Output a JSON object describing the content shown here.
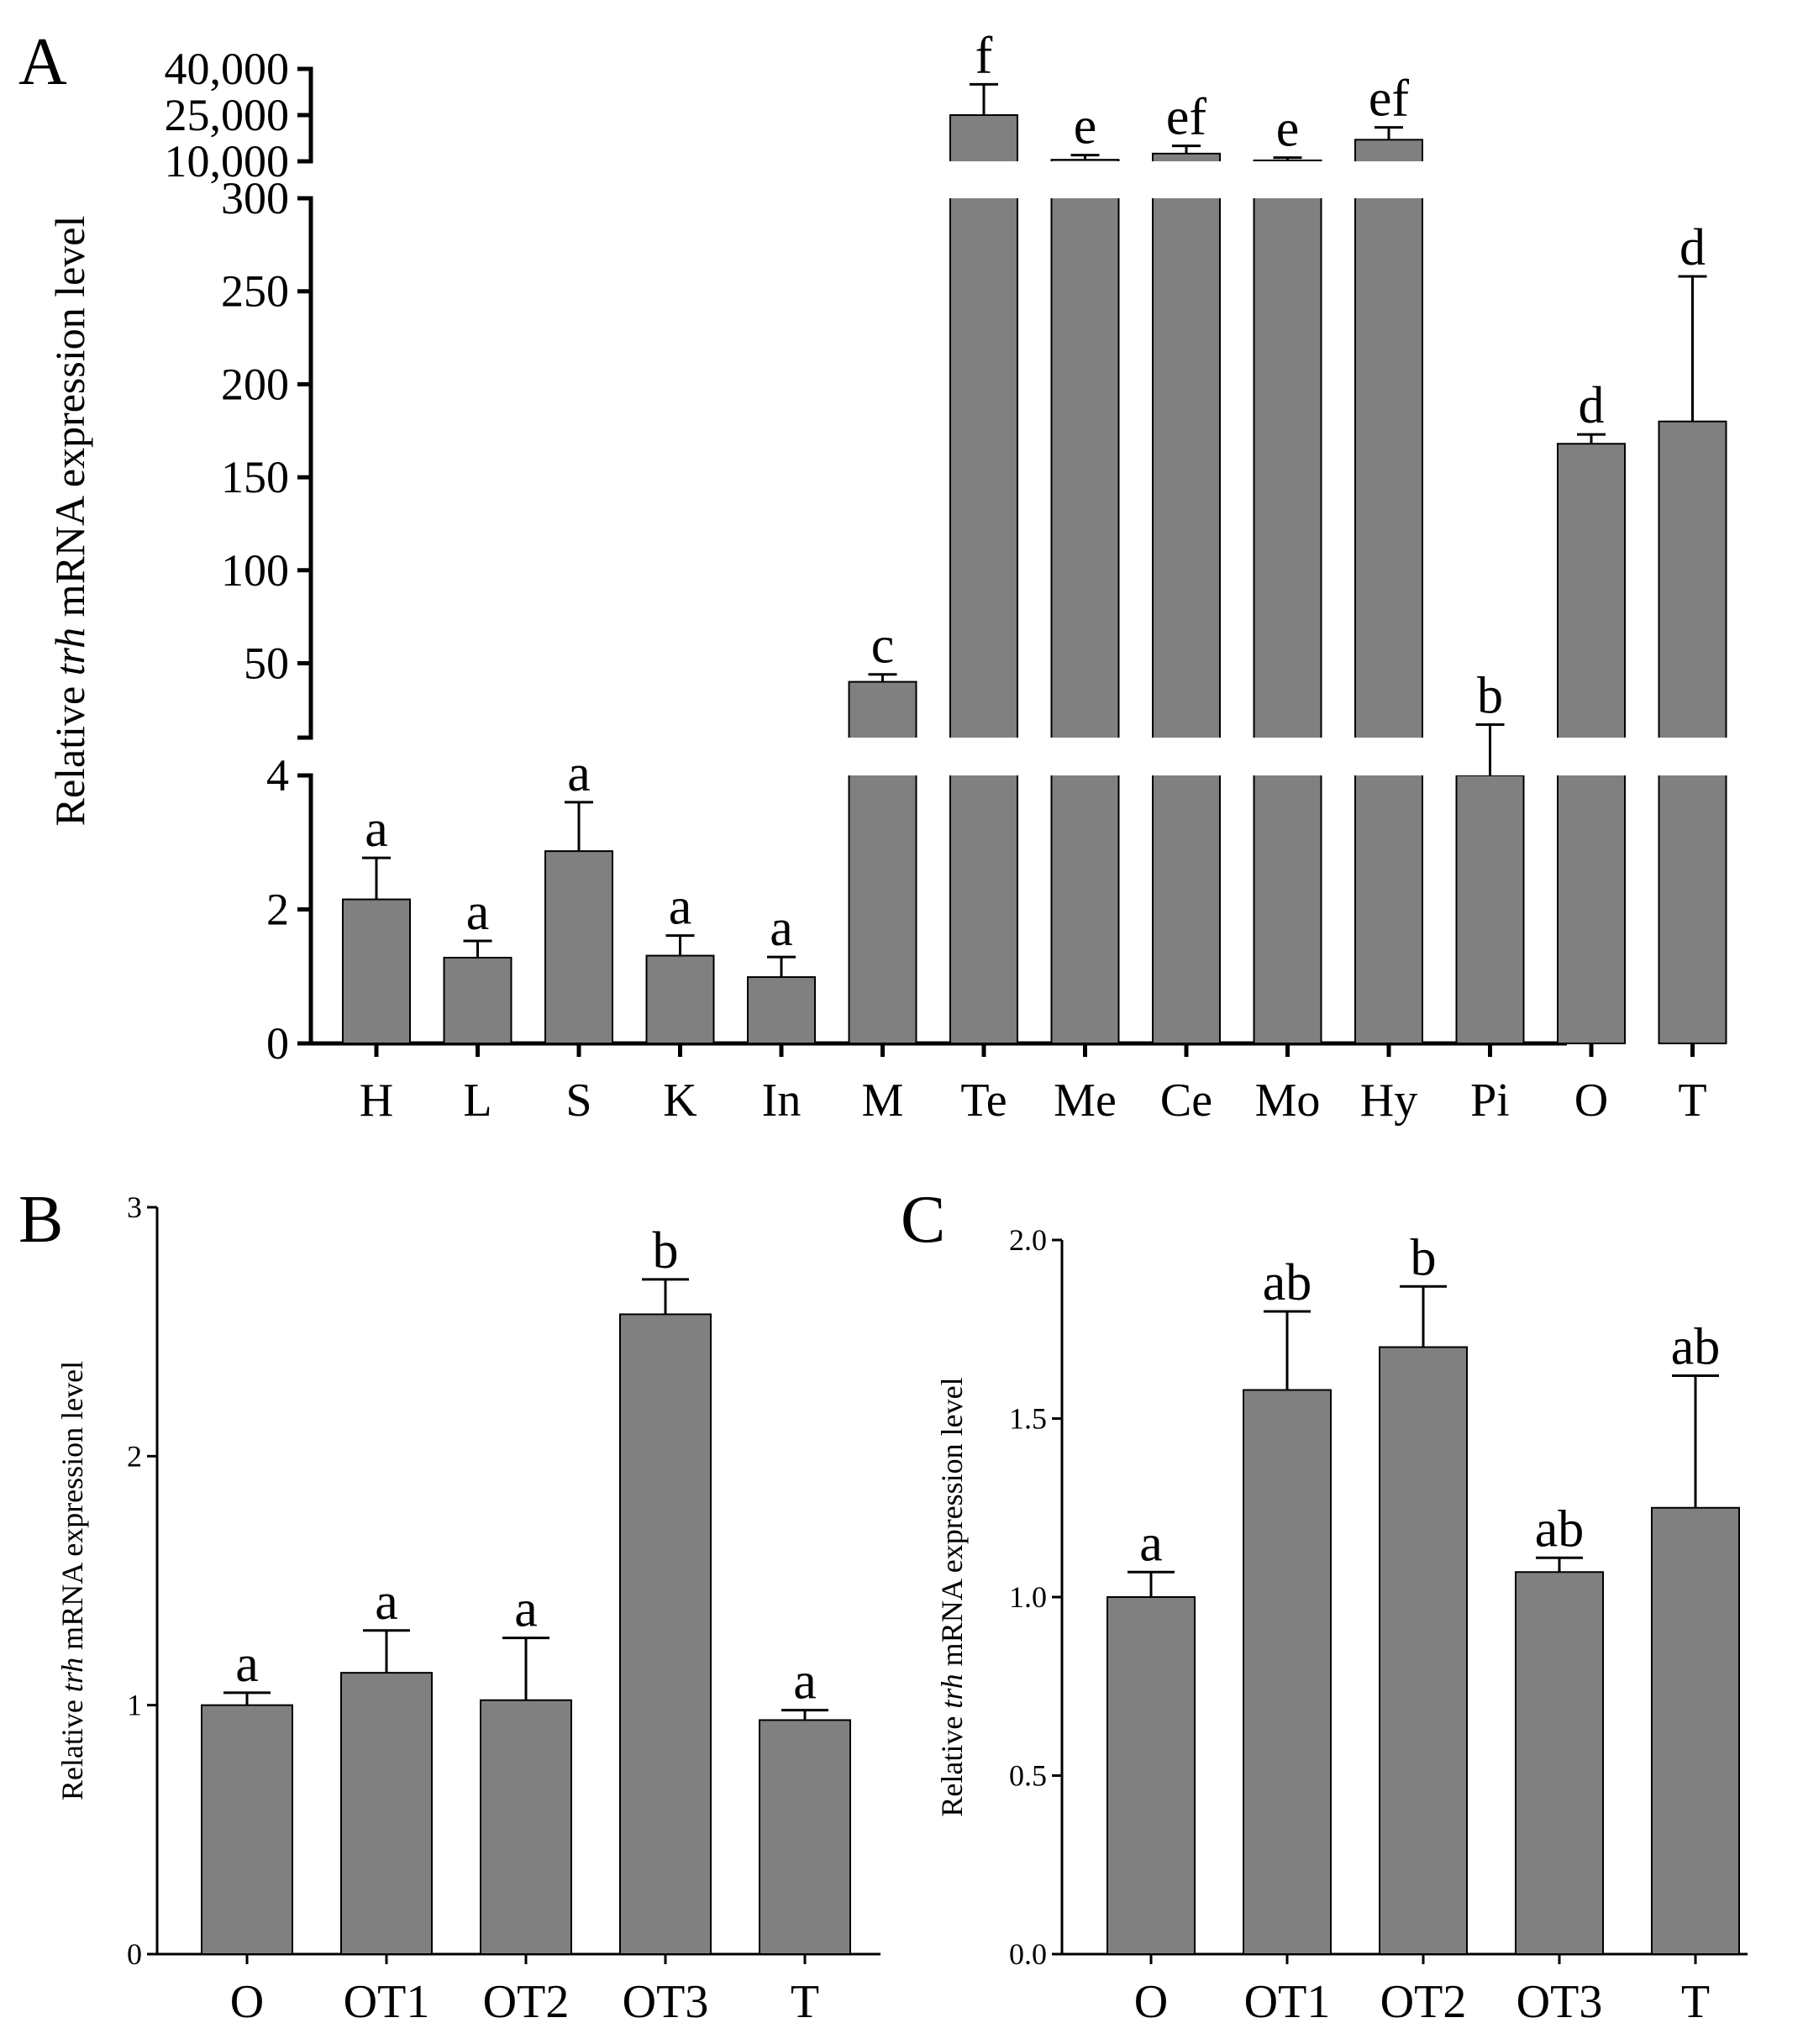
{
  "panels": [
    {
      "letter": "A",
      "chart_data": {
        "type": "bar",
        "ylabel_prefix": "Relative ",
        "ylabel_italic": "trh",
        "ylabel_suffix": " mRNA expression level",
        "categories": [
          "H",
          "L",
          "S",
          "K",
          "In",
          "M",
          "Te",
          "Me",
          "Ce",
          "Mo",
          "Hy",
          "Pi",
          "O",
          "T"
        ],
        "values": [
          2.15,
          1.28,
          2.87,
          1.31,
          0.99,
          40,
          25000,
          10500,
          12500,
          10300,
          17000,
          9,
          168,
          180
        ],
        "errors": [
          0.62,
          0.25,
          0.73,
          0.3,
          0.3,
          4,
          10000,
          1500,
          2500,
          900,
          4000,
          8,
          5,
          78
        ],
        "significance": [
          "a",
          "a",
          "a",
          "a",
          "a",
          "c",
          "f",
          "e",
          "ef",
          "e",
          "ef",
          "b",
          "d",
          "d"
        ],
        "y_axis_breaks": [
          {
            "range": [
              0,
              4
            ],
            "ticks": [
              0,
              2,
              4
            ],
            "tick_labels": [
              "0",
              "2",
              "4"
            ]
          },
          {
            "range": [
              10,
              300
            ],
            "ticks": [
              50,
              100,
              150,
              200,
              250,
              300
            ],
            "tick_labels": [
              "50",
              "100",
              "150",
              "200",
              "250",
              "300"
            ]
          },
          {
            "range": [
              10000,
              40000
            ],
            "ticks": [
              10000,
              25000,
              40000
            ],
            "tick_labels": [
              "10,000",
              "25,000",
              "40,000"
            ]
          }
        ]
      }
    },
    {
      "letter": "B",
      "chart_data": {
        "type": "bar",
        "ylabel_prefix": "Relative ",
        "ylabel_italic": "trh",
        "ylabel_suffix": " mRNA expression level",
        "categories": [
          "O",
          "OT1",
          "OT2",
          "OT3",
          "T"
        ],
        "values": [
          1.0,
          1.13,
          1.02,
          2.57,
          0.94
        ],
        "errors": [
          0.05,
          0.17,
          0.25,
          0.14,
          0.04
        ],
        "significance": [
          "a",
          "a",
          "a",
          "b",
          "a"
        ],
        "ylim": [
          0,
          3
        ],
        "ticks": [
          0,
          1,
          2,
          3
        ],
        "tick_labels": [
          "0",
          "1",
          "2",
          "3"
        ]
      }
    },
    {
      "letter": "C",
      "chart_data": {
        "type": "bar",
        "ylabel_prefix": "Relative ",
        "ylabel_italic": "trh",
        "ylabel_suffix": " mRNA expression level",
        "categories": [
          "O",
          "OT1",
          "OT2",
          "OT3",
          "T"
        ],
        "values": [
          1.0,
          1.58,
          1.7,
          1.07,
          1.25
        ],
        "errors": [
          0.07,
          0.22,
          0.17,
          0.04,
          0.37
        ],
        "significance": [
          "a",
          "ab",
          "b",
          "ab",
          "ab"
        ],
        "ylim": [
          0,
          2
        ],
        "ticks": [
          0.0,
          0.5,
          1.0,
          1.5,
          2.0
        ],
        "tick_labels": [
          "0.0",
          "0.5",
          "1.0",
          "1.5",
          "2.0"
        ]
      }
    }
  ]
}
